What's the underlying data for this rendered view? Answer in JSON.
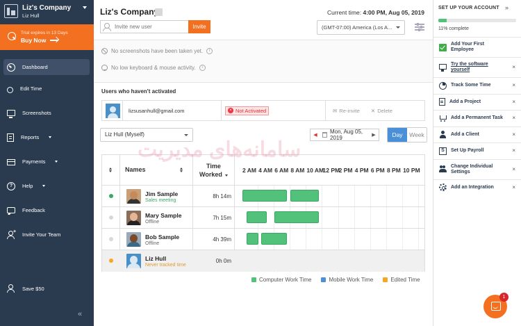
{
  "sidebar": {
    "company": "Liz's Company",
    "user": "Liz Hull",
    "trial_text": "Trial expires in 13 Days",
    "buy_now": "Buy Now",
    "nav": [
      {
        "label": "Dashboard",
        "icon": "dashboard-icon",
        "active": true
      },
      {
        "label": "Edit Time",
        "icon": "clock-icon"
      },
      {
        "label": "Screenshots",
        "icon": "monitor-icon"
      },
      {
        "label": "Reports",
        "icon": "reports-icon",
        "has_caret": true
      },
      {
        "label": "Payments",
        "icon": "card-icon",
        "has_caret": true
      },
      {
        "label": "Help",
        "icon": "help-icon",
        "has_caret": true
      },
      {
        "label": "Feedback",
        "icon": "chat-icon"
      },
      {
        "label": "Invite Your Team",
        "icon": "add-user-icon"
      }
    ],
    "save": "Save $50",
    "collapse": "«"
  },
  "header": {
    "title": "Liz's Company",
    "current_time_label": "Current time:",
    "current_time_value": "4:00 PM, Aug 05, 2019",
    "invite_placeholder": "Invite new user",
    "invite_button": "Invite",
    "timezone": "(GMT-07:00) America (Los A..."
  },
  "notices": {
    "no_screenshots": "No screenshots have been taken yet.",
    "no_activity": "No low keyboard & mouse activity.",
    "help_glyph": "i"
  },
  "unactivated": {
    "title": "Users who haven't activated",
    "email": "lizsusanhull@gmail.com",
    "status": "Not Activated",
    "reinvite": "Re-invite",
    "delete": "Delete"
  },
  "filters": {
    "user_select": "Liz Hull (Myself)",
    "date": "Mon, Aug 05, 2019",
    "prev": "◀",
    "next": "▶",
    "views": [
      "Day",
      "Week"
    ],
    "active_view": "Day"
  },
  "timesheet": {
    "headers": {
      "names": "Names",
      "time": "Time",
      "worked": "Worked"
    },
    "hours": [
      "2 AM",
      "4 AM",
      "6 AM",
      "8 AM",
      "10 AM",
      "12 PM",
      "2 PM",
      "4 PM",
      "6 PM",
      "8 PM",
      "10 PM"
    ],
    "rows": [
      {
        "name": "Jim Sample",
        "status": "Sales meeting",
        "status_color": "#3aa863",
        "dot": "#3aa863",
        "total": "8h 14m",
        "bars": [
          [
            2.0,
            7.5
          ],
          [
            8.0,
            11.5
          ]
        ],
        "skin": "#c48a5a",
        "shirt": "#333333",
        "bg": "#c7a07a"
      },
      {
        "name": "Mary Sample",
        "status": "Offline",
        "status_color": "#666666",
        "dot": "#d8d8d8",
        "total": "7h 15m",
        "bars": [
          [
            2.5,
            5.0
          ],
          [
            6.0,
            11.5
          ]
        ],
        "skin": "#e6b596",
        "shirt": "#222222",
        "bg": "#8a6e5a"
      },
      {
        "name": "Bob Sample",
        "status": "Offline",
        "status_color": "#666666",
        "dot": "#d8d8d8",
        "total": "4h 39m",
        "bars": [
          [
            2.5,
            4.0
          ],
          [
            4.3,
            7.5
          ]
        ],
        "skin": "#7a4a2a",
        "shirt": "#3a6a8a",
        "bg": "#9aa9b8"
      },
      {
        "name": "Liz Hull",
        "status": "Never tracked time",
        "status_color": "#e39a2d",
        "dot": "#f5a623",
        "total": "0h 0m",
        "bars": [],
        "skin": "#dbe9f4",
        "shirt": "#dbe9f4",
        "bg": "#4a90c8"
      }
    ]
  },
  "legend": [
    {
      "label": "Computer Work Time",
      "color": "#52c27a"
    },
    {
      "label": "Mobile Work Time",
      "color": "#4a90d9"
    },
    {
      "label": "Edited Time",
      "color": "#f5a623"
    }
  ],
  "watermark": "سامانه‌های مدیریت",
  "setup": {
    "title": "SET UP YOUR ACCOUNT",
    "collapse": "»",
    "progress": 0.11,
    "progress_text": "11% complete",
    "steps": [
      {
        "label": "Add Your First Employee",
        "icon": "check-icon",
        "done": true
      },
      {
        "label": "Try the software yourself",
        "icon": "monitor-icon",
        "link": true
      },
      {
        "label": "Track Some Time",
        "icon": "pie-icon"
      },
      {
        "label": "Add a Project",
        "icon": "document-icon"
      },
      {
        "label": "Add a Permanent Task",
        "icon": "cart-icon"
      },
      {
        "label": "Add a Client",
        "icon": "person-icon"
      },
      {
        "label": "Set Up Payroll",
        "icon": "dollar-icon"
      },
      {
        "label": "Change Individual Settings",
        "icon": "users-icon"
      },
      {
        "label": "Add an Integration",
        "icon": "gear-icon"
      }
    ],
    "close": "×"
  },
  "chat": {
    "badge": "1"
  }
}
